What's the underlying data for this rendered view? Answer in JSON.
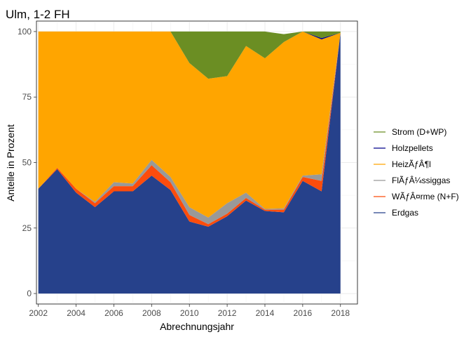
{
  "chart_data": {
    "type": "area",
    "stacked": true,
    "title": "Ulm, 1-2 FH",
    "xlabel": "Abrechnungsjahr",
    "ylabel": "Anteile in Prozent",
    "xlim": [
      2001.9,
      2018.9
    ],
    "ylim": [
      -4,
      104
    ],
    "x_ticks": [
      2002,
      2004,
      2006,
      2008,
      2010,
      2012,
      2014,
      2016,
      2018
    ],
    "y_ticks": [
      0,
      25,
      50,
      75,
      100
    ],
    "grid": true,
    "legend_position": "right",
    "x": [
      2002,
      2003,
      2004,
      2005,
      2006,
      2007,
      2008,
      2009,
      2010,
      2011,
      2012,
      2013,
      2014,
      2015,
      2016,
      2017,
      2018
    ],
    "series": [
      {
        "name": "Erdgas",
        "color": "#26418b",
        "values": [
          40,
          47.5,
          38.5,
          33,
          39,
          39,
          45,
          39.5,
          27.5,
          25.5,
          29.5,
          35.5,
          31.5,
          31,
          43,
          39,
          99.5
        ]
      },
      {
        "name": "WÃƒÂ¤rme (N+F)",
        "color": "#fc4c0c",
        "values": [
          0,
          0.5,
          1.5,
          1.5,
          2,
          2,
          4,
          3,
          2.5,
          1,
          1,
          1,
          0.5,
          1,
          1.5,
          4,
          0
        ]
      },
      {
        "name": "FlÃƒÂ¼ssiggas",
        "color": "#999999",
        "values": [
          0,
          0,
          0,
          0.5,
          1.5,
          1,
          2,
          2,
          3,
          2.5,
          4,
          2,
          0.3,
          0.5,
          0.5,
          2.5,
          0
        ]
      },
      {
        "name": "HeizÃƒÂ¶l",
        "color": "#ffa500",
        "values": [
          60,
          52,
          60,
          65,
          57.5,
          58,
          49,
          55.5,
          55,
          53,
          48.5,
          56,
          57.5,
          63.5,
          55,
          51.5,
          0
        ]
      },
      {
        "name": "Holzpellets",
        "color": "#00008b",
        "values": [
          0,
          0,
          0,
          0,
          0,
          0,
          0,
          0,
          0,
          0,
          0,
          0,
          0,
          0,
          0,
          0.5,
          0
        ]
      },
      {
        "name": "Strom (D+WP)",
        "color": "#6b8e23",
        "values": [
          0,
          0,
          0,
          0,
          0,
          0,
          0,
          0,
          12,
          18,
          17,
          5.5,
          10.2,
          3,
          0,
          2.5,
          0.5
        ]
      }
    ],
    "legend_order": [
      "Strom (D+WP)",
      "Holzpellets",
      "HeizÃƒÂ¶l",
      "FlÃƒÂ¼ssiggas",
      "WÃƒÂ¤rme (N+F)",
      "Erdgas"
    ]
  }
}
